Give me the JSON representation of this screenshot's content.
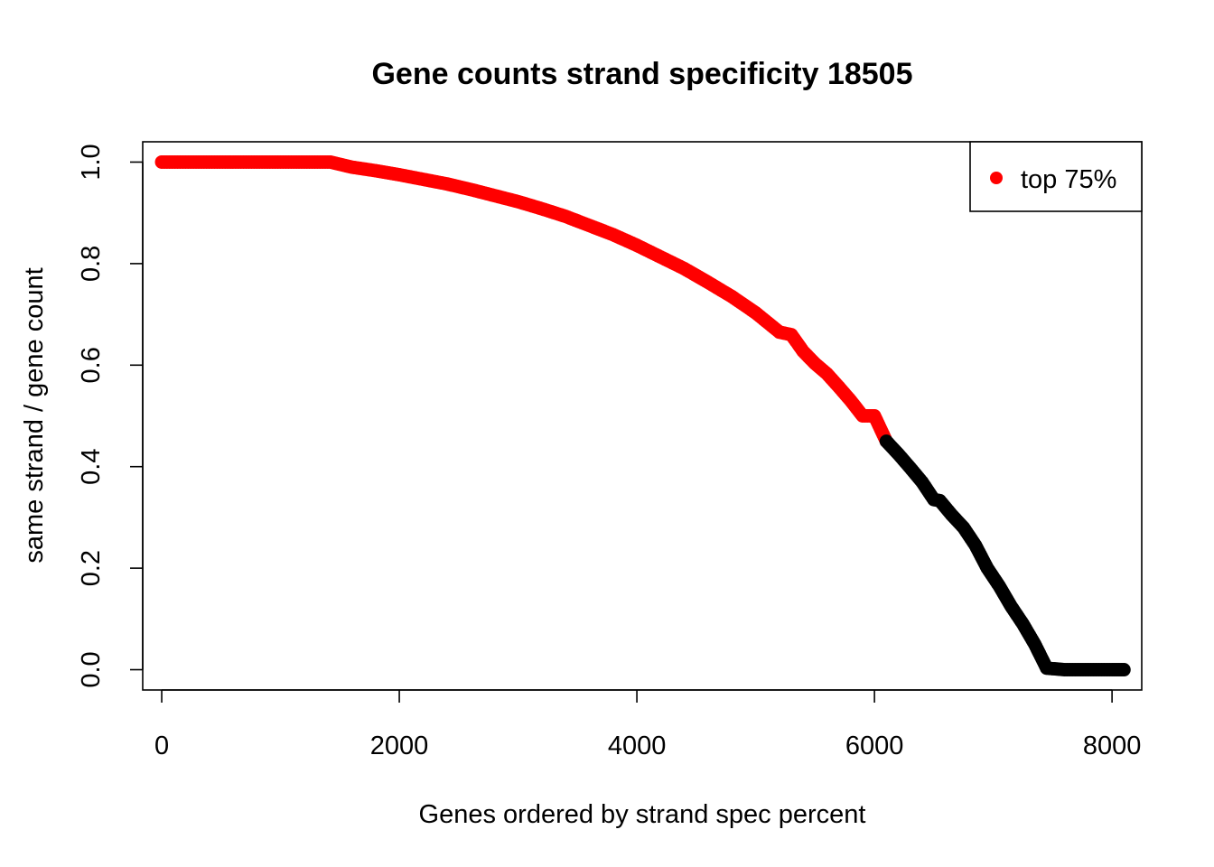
{
  "chart_data": {
    "type": "scatter",
    "title": "Gene counts strand specificity 18505",
    "xlabel": "Genes ordered by strand spec percent",
    "ylabel": "same strand / gene count",
    "xlim": [
      -160,
      8250
    ],
    "ylim": [
      -0.04,
      1.04
    ],
    "x_ticks": [
      0,
      2000,
      4000,
      6000,
      8000
    ],
    "y_ticks": [
      0.0,
      0.2,
      0.4,
      0.6,
      0.8,
      1.0
    ],
    "x_tick_labels": [
      "0",
      "2000",
      "4000",
      "6000",
      "8000"
    ],
    "y_tick_labels": [
      "0.0",
      "0.2",
      "0.4",
      "0.6",
      "0.8",
      "1.0"
    ],
    "grid": false,
    "legend": {
      "position": "top-right",
      "entries": [
        {
          "label": "top 75%",
          "color": "#ff0000"
        }
      ]
    },
    "series": [
      {
        "name": "top 75%",
        "color": "#ff0000",
        "points": [
          [
            0,
            1.0
          ],
          [
            200,
            1.0
          ],
          [
            400,
            1.0
          ],
          [
            600,
            1.0
          ],
          [
            800,
            1.0
          ],
          [
            1000,
            1.0
          ],
          [
            1200,
            1.0
          ],
          [
            1420,
            1.0
          ],
          [
            1600,
            0.99
          ],
          [
            1800,
            0.983
          ],
          [
            2000,
            0.975
          ],
          [
            2200,
            0.966
          ],
          [
            2400,
            0.957
          ],
          [
            2600,
            0.946
          ],
          [
            2800,
            0.934
          ],
          [
            3000,
            0.922
          ],
          [
            3200,
            0.908
          ],
          [
            3400,
            0.893
          ],
          [
            3600,
            0.875
          ],
          [
            3800,
            0.857
          ],
          [
            4000,
            0.836
          ],
          [
            4200,
            0.813
          ],
          [
            4400,
            0.79
          ],
          [
            4600,
            0.763
          ],
          [
            4800,
            0.735
          ],
          [
            5000,
            0.703
          ],
          [
            5200,
            0.665
          ],
          [
            5300,
            0.66
          ],
          [
            5400,
            0.627
          ],
          [
            5500,
            0.603
          ],
          [
            5600,
            0.583
          ],
          [
            5700,
            0.557
          ],
          [
            5800,
            0.53
          ],
          [
            5900,
            0.5
          ],
          [
            6000,
            0.5
          ],
          [
            6100,
            0.45
          ]
        ]
      },
      {
        "name": "",
        "color": "#000000",
        "points": [
          [
            6100,
            0.45
          ],
          [
            6200,
            0.425
          ],
          [
            6300,
            0.398
          ],
          [
            6400,
            0.37
          ],
          [
            6500,
            0.335
          ],
          [
            6550,
            0.333
          ],
          [
            6650,
            0.305
          ],
          [
            6750,
            0.28
          ],
          [
            6850,
            0.245
          ],
          [
            6950,
            0.2
          ],
          [
            7050,
            0.165
          ],
          [
            7150,
            0.125
          ],
          [
            7250,
            0.09
          ],
          [
            7350,
            0.05
          ],
          [
            7450,
            0.003
          ],
          [
            7600,
            0.0
          ],
          [
            7800,
            0.0
          ],
          [
            8000,
            0.0
          ],
          [
            8100,
            0.0
          ]
        ]
      }
    ]
  }
}
